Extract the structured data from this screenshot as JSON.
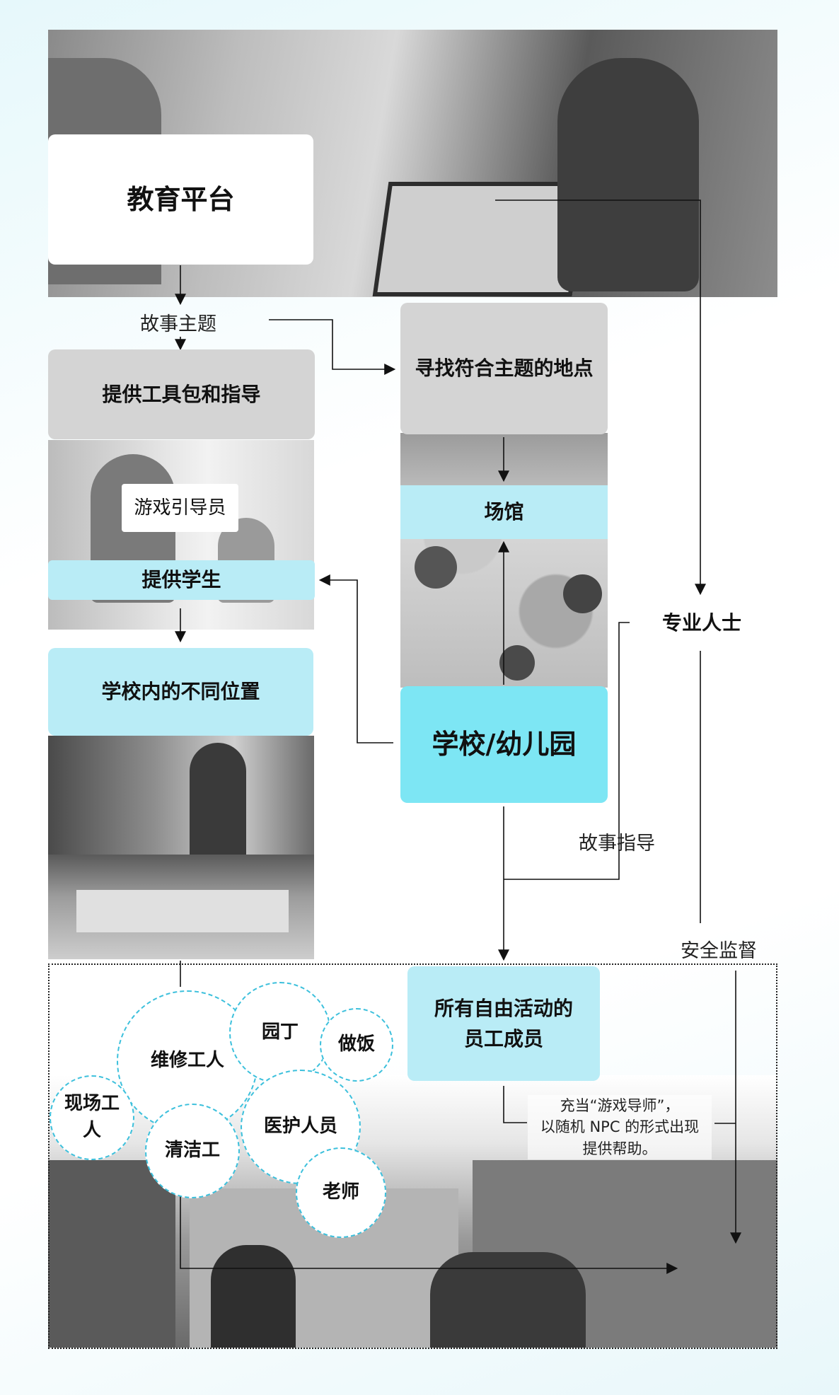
{
  "top": {
    "platform": "教育平台"
  },
  "left": {
    "story_theme": "故事主题",
    "toolkit": "提供工具包和指导",
    "guide": "游戏引导员",
    "provide_students": "提供学生",
    "school_locations": "学校内的不同位置"
  },
  "middle": {
    "find_location": "寻找符合主题的地点",
    "venue": "场馆",
    "school": "学校/幼儿园",
    "story_guidance": "故事指导"
  },
  "right": {
    "professionals": "专业人士",
    "safety": "安全监督"
  },
  "bottom": {
    "free_staff": "所有自由活动的员工成员",
    "npc_note": [
      "充当“游戏导师”，",
      "以随机 NPC 的形式出现",
      "提供帮助。"
    ],
    "roles": {
      "maintenance": "维修工人",
      "gardener": "园丁",
      "cook": "做饭",
      "onsite": "现场工人",
      "cleaner": "清洁工",
      "medical": "医护人员",
      "teacher": "老师"
    }
  }
}
